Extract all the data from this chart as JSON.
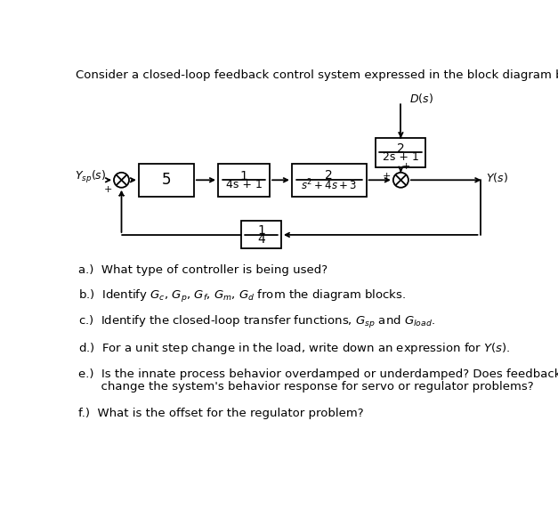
{
  "title": "Consider a closed-loop feedback control system expressed in the block diagram below.",
  "title_color": "#000000",
  "bg_color": "#ffffff",
  "block_color": "#000000",
  "questions_a": "a.)  What type of controller is being used?",
  "questions_b": "b.)  Identify $G_c$, $G_p$, $G_f$, $G_m$, $G_d$ from the diagram blocks.",
  "questions_c": "c.)  Identify the closed-loop transfer functions, $G_{sp}$ and $G_{load}$.",
  "questions_d": "d.)  For a unit step change in the load, write down an expression for $Y(s)$.",
  "questions_e1": "e.)  Is the innate process behavior overdamped or underdamped? Does feedback control",
  "questions_e2": "      change the system's behavior response for servo or regulator problems?",
  "questions_f": "f.)  What is the offset for the regulator problem?",
  "block5_label": "5",
  "block_filter_num": "1",
  "block_filter_den": "4s + 1",
  "block_proc_num": "2",
  "block_proc_den": "$s^2 + 4s + 3$",
  "block_dist_num": "2",
  "block_dist_den": "2s + 1",
  "block_fb_num": "1",
  "block_fb_den": "4",
  "label_ysp": "$Y_{sp}(s)$",
  "label_ys": "$Y(s)$",
  "label_ds": "$D(s)$"
}
